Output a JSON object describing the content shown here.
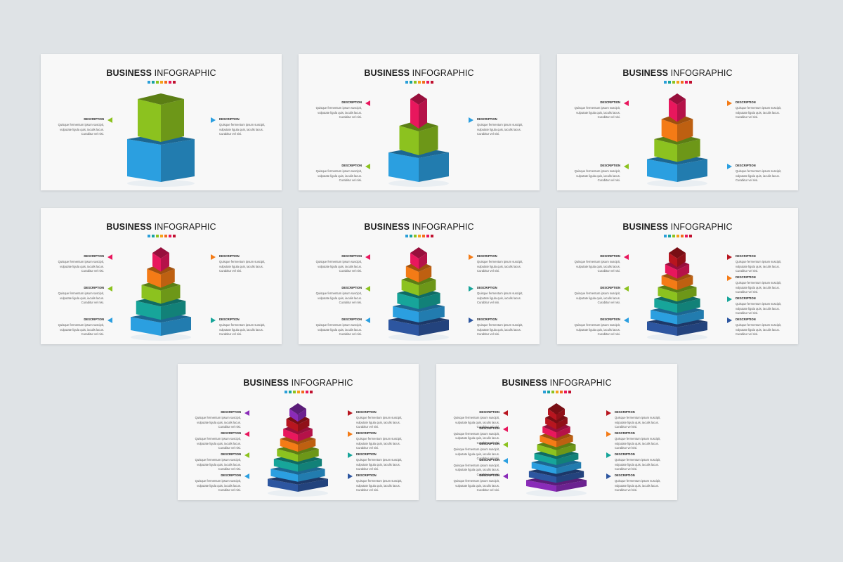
{
  "slide_title": {
    "bold": "BUSINESS",
    "light": "INFOGRAPHIC"
  },
  "title_dot_colors": [
    "#2b9fd9",
    "#1aa3a0",
    "#8dc21f",
    "#f6a11a",
    "#f26b1d",
    "#e8175d",
    "#c0112f"
  ],
  "description_label": "DESCRIPTION",
  "description_text": "Quisque fermentum ipsum suscipit, vulputate ligula quis, iaculis lacus. Curabitur vel nisi.",
  "description_text_wide": "Quisque fermentum ipsum suscipit, vulputate ligula quis, iaculis lacus. Curabitur vel nisi.",
  "layer_colors": {
    "purple": "#8a2bb8",
    "dark_red": "#b8151f",
    "pink": "#e8175d",
    "orange": "#f47b16",
    "lime": "#8cc21f",
    "teal": "#17a59a",
    "blue": "#2b9fe0",
    "navy": "#2d56a0"
  },
  "slides": [
    {
      "layers": [
        "lime",
        "blue"
      ],
      "left": [
        {
          "color": "lime"
        }
      ],
      "right": [
        {
          "color": "blue"
        }
      ]
    },
    {
      "layers": [
        "pink",
        "lime",
        "blue"
      ],
      "left": [
        {
          "color": "pink"
        },
        {
          "color": "lime"
        }
      ],
      "right": [
        {
          "color": "blue"
        }
      ]
    },
    {
      "layers": [
        "pink",
        "orange",
        "lime",
        "blue"
      ],
      "left": [
        {
          "color": "pink"
        },
        {
          "color": "lime"
        }
      ],
      "right": [
        {
          "color": "orange"
        },
        {
          "color": "blue"
        }
      ]
    },
    {
      "layers": [
        "pink",
        "orange",
        "lime",
        "teal",
        "blue"
      ],
      "left": [
        {
          "color": "pink"
        },
        {
          "color": "lime"
        },
        {
          "color": "blue"
        }
      ],
      "right": [
        {
          "color": "orange"
        },
        {
          "color": "teal"
        }
      ]
    },
    {
      "layers": [
        "pink",
        "orange",
        "lime",
        "teal",
        "blue",
        "navy"
      ],
      "left": [
        {
          "color": "pink"
        },
        {
          "color": "lime"
        },
        {
          "color": "blue"
        }
      ],
      "right": [
        {
          "color": "orange"
        },
        {
          "color": "teal"
        },
        {
          "color": "navy"
        }
      ]
    },
    {
      "layers": [
        "dark_red",
        "pink",
        "orange",
        "lime",
        "teal",
        "blue",
        "navy"
      ],
      "left": [
        {
          "color": "pink"
        },
        {
          "color": "lime"
        },
        {
          "color": "blue"
        }
      ],
      "right": [
        {
          "color": "dark_red"
        },
        {
          "color": "orange"
        },
        {
          "color": "teal"
        },
        {
          "color": "navy"
        }
      ]
    },
    {
      "layers": [
        "purple",
        "dark_red",
        "pink",
        "orange",
        "lime",
        "teal",
        "blue",
        "navy"
      ],
      "left": [
        {
          "color": "purple"
        },
        {
          "color": "pink"
        },
        {
          "color": "lime"
        },
        {
          "color": "blue"
        }
      ],
      "right": [
        {
          "color": "dark_red"
        },
        {
          "color": "orange"
        },
        {
          "color": "teal"
        },
        {
          "color": "navy"
        }
      ]
    },
    {
      "layers": [
        "dark_red",
        "dark_red",
        "pink",
        "orange",
        "lime",
        "teal",
        "blue",
        "navy",
        "purple"
      ],
      "left": [
        {
          "color": "dark_red"
        },
        {
          "color": "pink"
        },
        {
          "color": "lime"
        },
        {
          "color": "blue"
        },
        {
          "color": "purple"
        }
      ],
      "right": [
        {
          "color": "dark_red"
        },
        {
          "color": "orange"
        },
        {
          "color": "teal"
        },
        {
          "color": "navy"
        }
      ]
    }
  ]
}
